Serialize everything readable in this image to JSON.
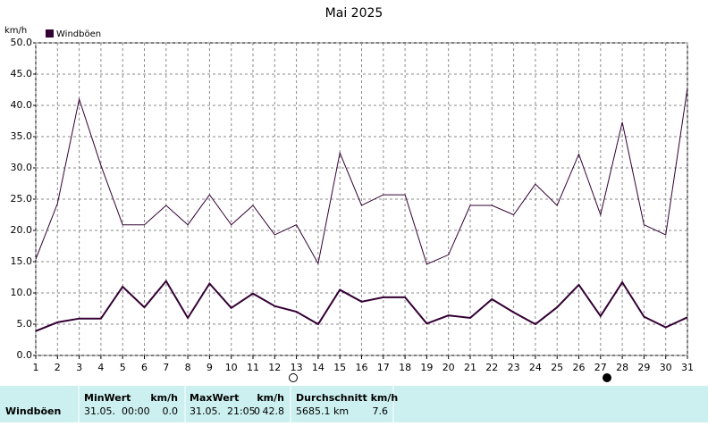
{
  "chart_data": {
    "type": "line",
    "title": "Mai 2025",
    "y_label": "km/h",
    "categories": [
      "1",
      "2",
      "3",
      "4",
      "5",
      "6",
      "7",
      "8",
      "9",
      "10",
      "11",
      "12",
      "13",
      "14",
      "15",
      "16",
      "17",
      "18",
      "19",
      "20",
      "21",
      "22",
      "23",
      "24",
      "25",
      "26",
      "27",
      "28",
      "29",
      "30",
      "31"
    ],
    "series": [
      {
        "name": "Windböen",
        "color": "#330033",
        "width": 1,
        "values": [
          15.4,
          24.3,
          41.0,
          30.4,
          20.9,
          20.9,
          24.0,
          20.9,
          25.7,
          20.9,
          24.0,
          19.3,
          20.9,
          14.7,
          32.4,
          24.0,
          25.7,
          25.7,
          14.6,
          16.1,
          24.0,
          24.0,
          22.5,
          27.4,
          24.0,
          32.2,
          22.5,
          37.3,
          20.9,
          19.3,
          42.8
        ]
      },
      {
        "color": "#330033",
        "width": 2,
        "values": [
          3.9,
          5.3,
          5.9,
          5.9,
          11.0,
          7.7,
          11.9,
          6.0,
          11.5,
          7.6,
          9.9,
          7.9,
          7.0,
          5.0,
          10.5,
          8.6,
          9.3,
          9.3,
          5.1,
          6.4,
          6.0,
          9.0,
          6.9,
          5.0,
          7.7,
          11.3,
          6.3,
          11.7,
          6.2,
          4.5,
          6.1
        ]
      }
    ],
    "ylim": [
      0,
      50
    ],
    "yticks": [
      {
        "value": 0,
        "label": "0.0"
      },
      {
        "value": 5,
        "label": "5.0"
      },
      {
        "value": 10,
        "label": "10.0"
      },
      {
        "value": 15,
        "label": "15.0"
      },
      {
        "value": 20,
        "label": "20.0"
      },
      {
        "value": 25,
        "label": "25.0"
      },
      {
        "value": 30,
        "label": "30.0"
      },
      {
        "value": 35,
        "label": "35.0"
      },
      {
        "value": 40,
        "label": "40.0"
      },
      {
        "value": 45,
        "label": "45.0"
      },
      {
        "value": 50,
        "label": "50.0"
      }
    ],
    "grid": true,
    "legend": "top-left"
  },
  "table": {
    "row_label": "Windböen",
    "min": {
      "header": "MinWert",
      "unit": "km/h",
      "time": "31.05.  00:00",
      "value": "0.0"
    },
    "max": {
      "header": "MaxWert",
      "unit": "km/h",
      "time": "31.05.  21:05",
      "dir": "0",
      "value": "42.8"
    },
    "avg": {
      "header": "Durchschnitt km/h",
      "distance": "5685.1 km",
      "value": "7.6"
    }
  }
}
